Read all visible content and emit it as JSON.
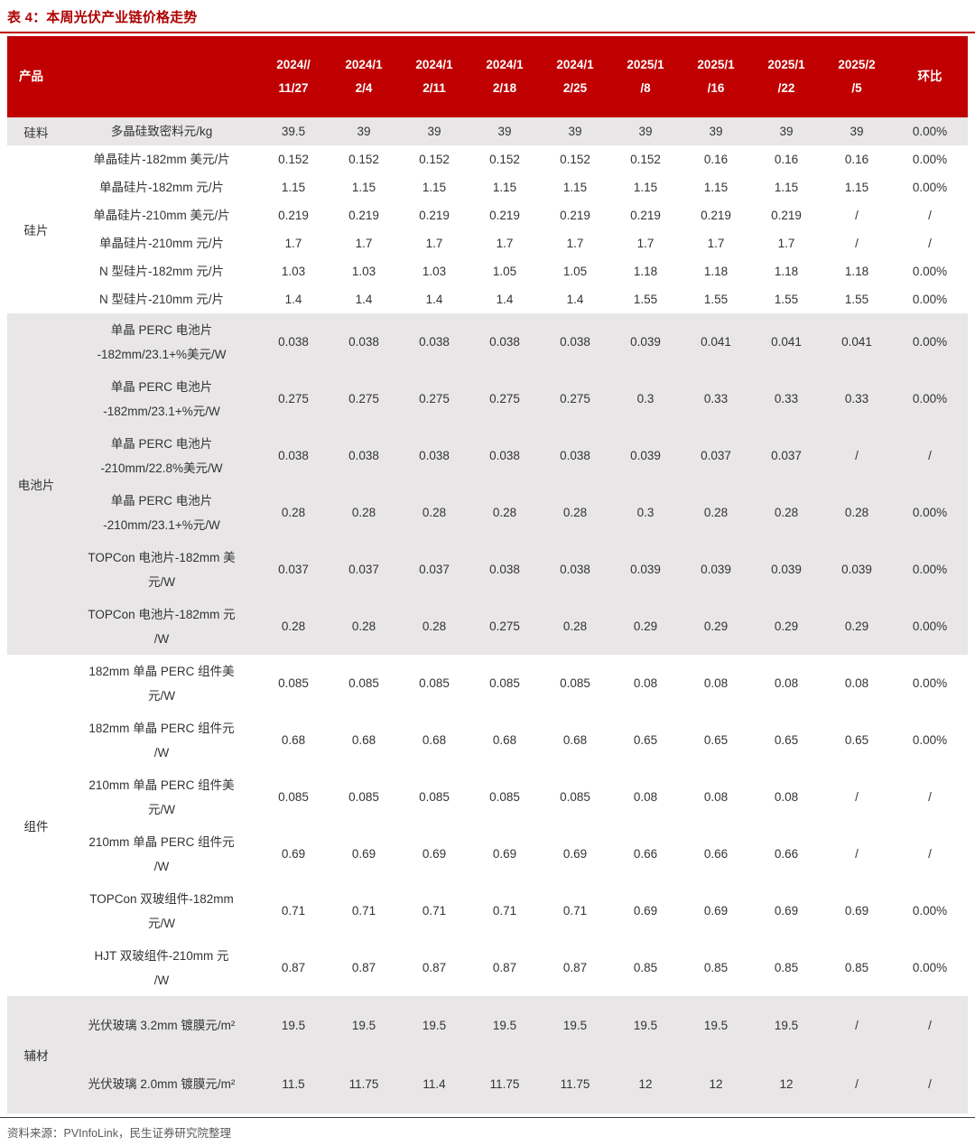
{
  "page": {
    "title": "表 4：本周光伏产业链价格走势",
    "source_note": "资料来源：PVInfoLink，民生证券研究院整理"
  },
  "colors": {
    "header_bg": "#C00000",
    "title_red": "#AE0000",
    "band_gray": "#E8E6E6",
    "band_white": "#FFFFFF",
    "body_text": "#333333"
  },
  "chart_data": {
    "type": "table",
    "product_header": "产品",
    "change_header": "环比",
    "date_headers": [
      "2024//\n11/27",
      "2024/1\n2/4",
      "2024/1\n2/11",
      "2024/1\n2/18",
      "2024/1\n2/25",
      "2025/1\n/8",
      "2025/1\n/16",
      "2025/1\n/22",
      "2025/2\n/5"
    ],
    "groups": [
      {
        "category": "硅料",
        "shade": "gray",
        "rows": [
          {
            "name": "多晶硅致密料元/kg",
            "size": "s",
            "values": [
              "39.5",
              "39",
              "39",
              "39",
              "39",
              "39",
              "39",
              "39",
              "39"
            ],
            "change": "0.00%"
          }
        ]
      },
      {
        "category": "硅片",
        "shade": "white",
        "rows": [
          {
            "name": "单晶硅片-182mm 美元/片",
            "size": "s",
            "values": [
              "0.152",
              "0.152",
              "0.152",
              "0.152",
              "0.152",
              "0.152",
              "0.16",
              "0.16",
              "0.16"
            ],
            "change": "0.00%"
          },
          {
            "name": "单晶硅片-182mm 元/片",
            "size": "s",
            "values": [
              "1.15",
              "1.15",
              "1.15",
              "1.15",
              "1.15",
              "1.15",
              "1.15",
              "1.15",
              "1.15"
            ],
            "change": "0.00%"
          },
          {
            "name": "单晶硅片-210mm 美元/片",
            "size": "s",
            "values": [
              "0.219",
              "0.219",
              "0.219",
              "0.219",
              "0.219",
              "0.219",
              "0.219",
              "0.219",
              "/"
            ],
            "change": "/"
          },
          {
            "name": "单晶硅片-210mm 元/片",
            "size": "s",
            "values": [
              "1.7",
              "1.7",
              "1.7",
              "1.7",
              "1.7",
              "1.7",
              "1.7",
              "1.7",
              "/"
            ],
            "change": "/"
          },
          {
            "name": "N 型硅片-182mm 元/片",
            "size": "s",
            "values": [
              "1.03",
              "1.03",
              "1.03",
              "1.05",
              "1.05",
              "1.18",
              "1.18",
              "1.18",
              "1.18"
            ],
            "change": "0.00%"
          },
          {
            "name": "N 型硅片-210mm 元/片",
            "size": "s",
            "values": [
              "1.4",
              "1.4",
              "1.4",
              "1.4",
              "1.4",
              "1.55",
              "1.55",
              "1.55",
              "1.55"
            ],
            "change": "0.00%"
          }
        ]
      },
      {
        "category": "电池片",
        "shade": "gray",
        "rows": [
          {
            "name": "单晶 PERC 电池片\n-182mm/23.1+%美元/W",
            "size": "m",
            "values": [
              "0.038",
              "0.038",
              "0.038",
              "0.038",
              "0.038",
              "0.039",
              "0.041",
              "0.041",
              "0.041"
            ],
            "change": "0.00%"
          },
          {
            "name": "单晶 PERC 电池片\n-182mm/23.1+%元/W",
            "size": "m",
            "values": [
              "0.275",
              "0.275",
              "0.275",
              "0.275",
              "0.275",
              "0.3",
              "0.33",
              "0.33",
              "0.33"
            ],
            "change": "0.00%"
          },
          {
            "name": "单晶 PERC 电池片\n-210mm/22.8%美元/W",
            "size": "m",
            "values": [
              "0.038",
              "0.038",
              "0.038",
              "0.038",
              "0.038",
              "0.039",
              "0.037",
              "0.037",
              "/"
            ],
            "change": "/"
          },
          {
            "name": "单晶 PERC 电池片\n-210mm/23.1+%元/W",
            "size": "m",
            "values": [
              "0.28",
              "0.28",
              "0.28",
              "0.28",
              "0.28",
              "0.3",
              "0.28",
              "0.28",
              "0.28"
            ],
            "change": "0.00%"
          },
          {
            "name": "TOPCon 电池片-182mm 美\n元/W",
            "size": "m",
            "values": [
              "0.037",
              "0.037",
              "0.037",
              "0.038",
              "0.038",
              "0.039",
              "0.039",
              "0.039",
              "0.039"
            ],
            "change": "0.00%"
          },
          {
            "name": "TOPCon 电池片-182mm 元\n/W",
            "size": "m",
            "values": [
              "0.28",
              "0.28",
              "0.28",
              "0.275",
              "0.28",
              "0.29",
              "0.29",
              "0.29",
              "0.29"
            ],
            "change": "0.00%"
          }
        ]
      },
      {
        "category": "组件",
        "shade": "white",
        "rows": [
          {
            "name": "182mm 单晶 PERC 组件美\n元/W",
            "size": "m",
            "values": [
              "0.085",
              "0.085",
              "0.085",
              "0.085",
              "0.085",
              "0.08",
              "0.08",
              "0.08",
              "0.08"
            ],
            "change": "0.00%"
          },
          {
            "name": "182mm 单晶 PERC 组件元\n/W",
            "size": "m",
            "values": [
              "0.68",
              "0.68",
              "0.68",
              "0.68",
              "0.68",
              "0.65",
              "0.65",
              "0.65",
              "0.65"
            ],
            "change": "0.00%"
          },
          {
            "name": "210mm 单晶 PERC 组件美\n元/W",
            "size": "m",
            "values": [
              "0.085",
              "0.085",
              "0.085",
              "0.085",
              "0.085",
              "0.08",
              "0.08",
              "0.08",
              "/"
            ],
            "change": "/"
          },
          {
            "name": "210mm 单晶 PERC 组件元\n/W",
            "size": "m",
            "values": [
              "0.69",
              "0.69",
              "0.69",
              "0.69",
              "0.69",
              "0.66",
              "0.66",
              "0.66",
              "/"
            ],
            "change": "/"
          },
          {
            "name": "TOPCon 双玻组件-182mm\n元/W",
            "size": "m",
            "values": [
              "0.71",
              "0.71",
              "0.71",
              "0.71",
              "0.71",
              "0.69",
              "0.69",
              "0.69",
              "0.69"
            ],
            "change": "0.00%"
          },
          {
            "name": "HJT 双玻组件-210mm 元\n/W",
            "size": "m",
            "values": [
              "0.87",
              "0.87",
              "0.87",
              "0.87",
              "0.87",
              "0.85",
              "0.85",
              "0.85",
              "0.85"
            ],
            "change": "0.00%"
          }
        ]
      },
      {
        "category": "辅材",
        "shade": "gray",
        "rows": [
          {
            "name": "光伏玻璃 3.2mm 镀膜元/m²",
            "size": "l",
            "values": [
              "19.5",
              "19.5",
              "19.5",
              "19.5",
              "19.5",
              "19.5",
              "19.5",
              "19.5",
              "/"
            ],
            "change": "/"
          },
          {
            "name": "光伏玻璃 2.0mm 镀膜元/m²",
            "size": "l",
            "values": [
              "11.5",
              "11.75",
              "11.4",
              "11.75",
              "11.75",
              "12",
              "12",
              "12",
              "/"
            ],
            "change": "/"
          }
        ]
      }
    ]
  }
}
